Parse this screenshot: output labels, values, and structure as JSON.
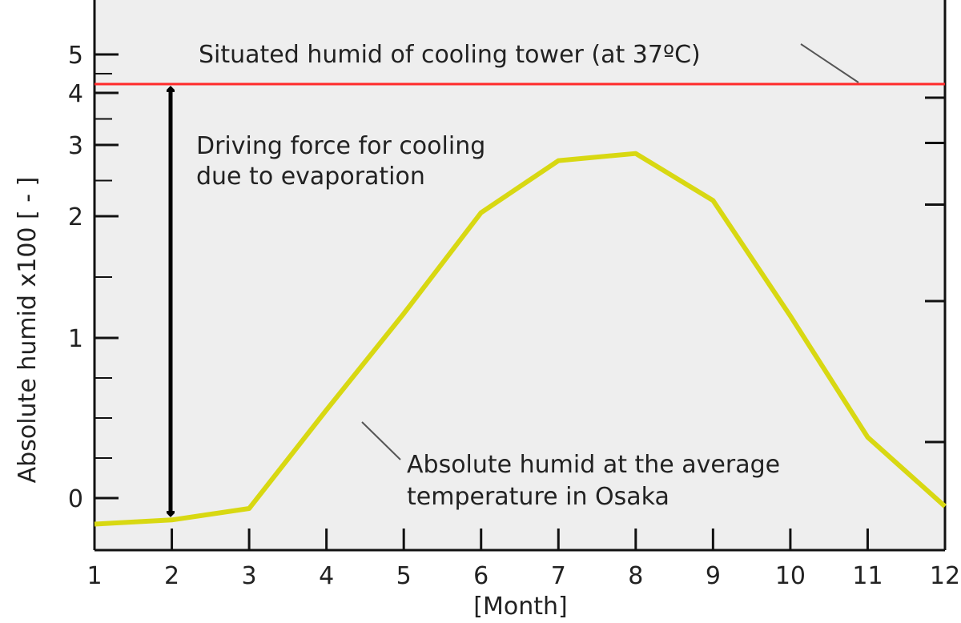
{
  "chart_data": {
    "type": "line",
    "title": "",
    "xlabel": "[Month]",
    "ylabel": "Absolute humid x100  [ - ]",
    "x": [
      1,
      2,
      3,
      4,
      5,
      6,
      7,
      8,
      9,
      10,
      11,
      12
    ],
    "xlim": [
      1,
      12
    ],
    "y_tick_labels": [
      "0",
      "1",
      "2",
      "3",
      "4",
      "5"
    ],
    "series": [
      {
        "values": [
          -0.25,
          -0.21,
          -0.1,
          0.55,
          1.2,
          2.05,
          2.78,
          2.88,
          2.22,
          1.18,
          0.38,
          -0.08
        ],
        "color": "#d8d812"
      }
    ],
    "reference_line": {
      "y": 4.0,
      "color": "#ff2a2a"
    },
    "annotations": {
      "saturated": "Situated humid of cooling tower (at 37ºC)",
      "driving_line1": "Driving force for cooling",
      "driving_line2": "due to evaporation",
      "osaka_line1": "Absolute humid at the average",
      "osaka_line2": "temperature in Osaka"
    },
    "grid": false,
    "background": "#eeeeee"
  }
}
